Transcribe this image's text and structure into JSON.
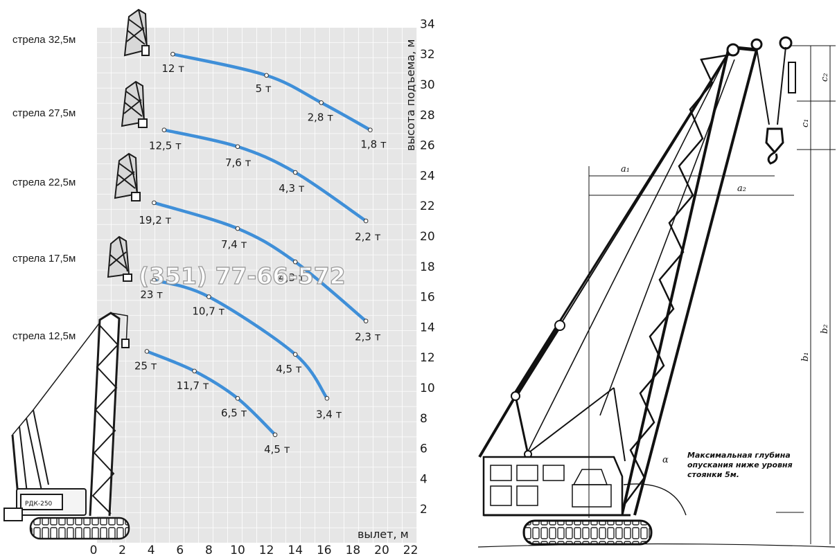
{
  "left_chart": {
    "boom_labels": [
      "стрела 32,5м",
      "стрела 27,5м",
      "стрела 22,5м",
      "стрела 17,5м",
      "стрела 12,5м"
    ],
    "watermark": "(351) 77-66-572",
    "crane_plate": "РДК-250",
    "chart_data": {
      "type": "line",
      "xlabel": "вылет, м",
      "ylabel": "высота подъема, м",
      "xlim": [
        0,
        22
      ],
      "ylim": [
        0,
        34
      ],
      "x_ticks": [
        "0",
        "2",
        "4",
        "6",
        "8",
        "10",
        "12",
        "14",
        "16",
        "18",
        "20",
        "22"
      ],
      "y_ticks": [
        "2",
        "4",
        "6",
        "8",
        "10",
        "12",
        "14",
        "16",
        "18",
        "20",
        "22",
        "24",
        "26",
        "28",
        "30",
        "32",
        "34"
      ],
      "series": [
        {
          "name": "стрела 32,5м",
          "points": [
            {
              "x": 5.5,
              "y": 32.0,
              "label": "12 т"
            },
            {
              "x": 12.0,
              "y": 30.6,
              "label": "5 т"
            },
            {
              "x": 15.8,
              "y": 28.8,
              "label": "2,8 т"
            },
            {
              "x": 19.2,
              "y": 27.0,
              "label": "1,8 т"
            }
          ]
        },
        {
          "name": "стрела 27,5м",
          "points": [
            {
              "x": 4.9,
              "y": 27.0,
              "label": "12,5 т"
            },
            {
              "x": 10.0,
              "y": 25.9,
              "label": "7,6 т"
            },
            {
              "x": 14.0,
              "y": 24.2,
              "label": "4,3 т"
            },
            {
              "x": 18.9,
              "y": 21.0,
              "label": "2,2 т"
            }
          ]
        },
        {
          "name": "стрела 22,5м",
          "points": [
            {
              "x": 4.2,
              "y": 22.2,
              "label": "19,2 т"
            },
            {
              "x": 10.0,
              "y": 20.5,
              "label": "7,4 т"
            },
            {
              "x": 14.0,
              "y": 18.3,
              "label": "4,3 т"
            },
            {
              "x": 18.9,
              "y": 14.4,
              "label": "2,3 т"
            }
          ]
        },
        {
          "name": "стрела 17,5м",
          "points": [
            {
              "x": 4.2,
              "y": 17.1,
              "label": "23 т"
            },
            {
              "x": 8.0,
              "y": 16.0,
              "label": "10,7 т"
            },
            {
              "x": 14.0,
              "y": 12.2,
              "label": "4,5 т"
            },
            {
              "x": 16.2,
              "y": 9.3,
              "label": "3,4 т"
            }
          ]
        },
        {
          "name": "стрела 12,5м",
          "points": [
            {
              "x": 3.7,
              "y": 12.4,
              "label": "25 т"
            },
            {
              "x": 7.0,
              "y": 11.1,
              "label": "11,7 т"
            },
            {
              "x": 10.0,
              "y": 9.3,
              "label": "6,5 т"
            },
            {
              "x": 12.6,
              "y": 6.9,
              "label": "4,5 т"
            }
          ]
        }
      ]
    }
  },
  "right_drawing": {
    "dimension_labels": {
      "a1": "a₁",
      "a2": "a₂",
      "b1": "b₁",
      "b2": "b₂",
      "c1": "c₁",
      "c2": "c₂",
      "alpha": "α"
    },
    "note_lines": [
      "Максимальная глубина",
      "опускания ниже уровня",
      "стоянки 5м."
    ]
  }
}
